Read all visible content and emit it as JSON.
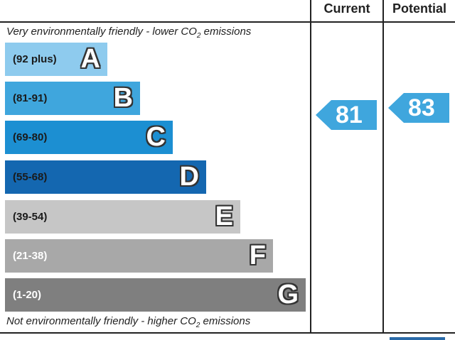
{
  "headers": {
    "current": "Current",
    "potential": "Potential"
  },
  "notes": {
    "top_prefix": "Very environmentally friendly - lower C",
    "top_sub": "O",
    "top_num": "2",
    "top_suffix": " emissions",
    "bottom_prefix": "Not environmentally friendly - higher C",
    "bottom_sub": "O",
    "bottom_num": "2",
    "bottom_suffix": " emissions"
  },
  "bands": [
    {
      "range": "(92 plus)",
      "letter": "A",
      "color": "#8ecbee",
      "range_color": "#1a1a1a"
    },
    {
      "range": "(81-91)",
      "letter": "B",
      "color": "#3fa6dd",
      "range_color": "#1a1a1a"
    },
    {
      "range": "(69-80)",
      "letter": "C",
      "color": "#1c8fd2",
      "range_color": "#1a1a1a"
    },
    {
      "range": "(55-68)",
      "letter": "D",
      "color": "#1467b0",
      "range_color": "#1a1a1a"
    },
    {
      "range": "(39-54)",
      "letter": "E",
      "color": "#c6c6c6",
      "range_color": "#1a1a1a"
    },
    {
      "range": "(21-38)",
      "letter": "F",
      "color": "#a8a8a8",
      "range_color": "#ffffff"
    },
    {
      "range": "(1-20)",
      "letter": "G",
      "color": "#7f7f7f",
      "range_color": "#ffffff"
    }
  ],
  "ratings": {
    "current": {
      "value": "81",
      "band": "B",
      "color": "#3fa6dd"
    },
    "potential": {
      "value": "83",
      "band": "B",
      "color": "#3fa6dd"
    }
  }
}
